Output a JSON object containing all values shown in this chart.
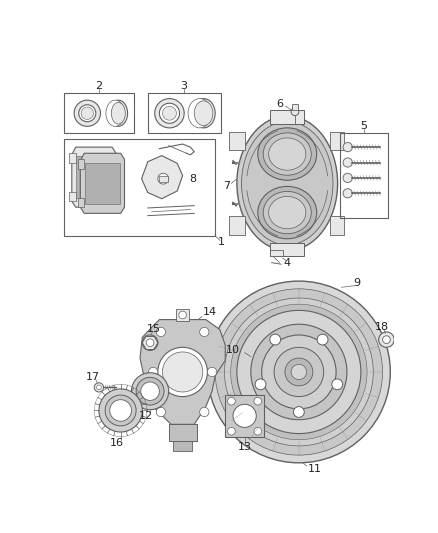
{
  "background_color": "#ffffff",
  "line_color": "#606060",
  "label_color": "#222222",
  "figsize": [
    4.38,
    5.33
  ],
  "dpi": 100,
  "gray_fill": "#d8d8d8",
  "light_gray": "#e8e8e8",
  "mid_gray": "#b0b0b0"
}
